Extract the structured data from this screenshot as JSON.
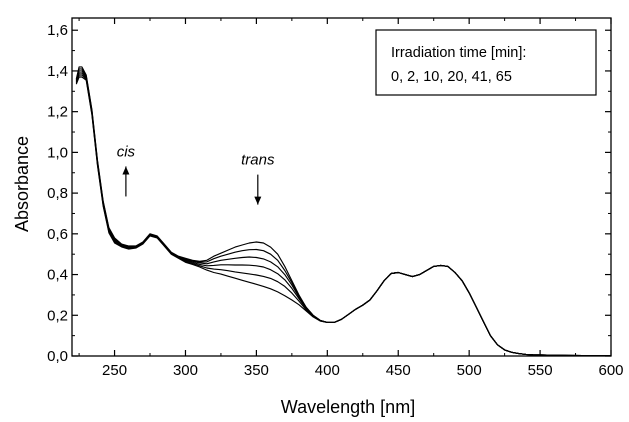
{
  "chart_data": {
    "type": "line",
    "title": "",
    "xlabel": "Wavelength [nm]",
    "ylabel": "Absorbance",
    "xlim": [
      220,
      600
    ],
    "ylim": [
      0.0,
      1.66
    ],
    "x_ticks": [
      250,
      300,
      350,
      400,
      450,
      500,
      550,
      600
    ],
    "x_tick_labels": [
      "250",
      "300",
      "350",
      "400",
      "450",
      "500",
      "550",
      "600"
    ],
    "y_ticks": [
      0.0,
      0.2,
      0.4,
      0.6,
      0.8,
      1.0,
      1.2,
      1.4,
      1.6
    ],
    "y_tick_labels": [
      "0,0",
      "0,2",
      "0,4",
      "0,6",
      "0,8",
      "1,0",
      "1,2",
      "1,4",
      "1,6"
    ],
    "grid": false,
    "legend": {
      "title": "Irradiation time [min]:",
      "entries": "0, 2, 10, 20, 41, 65",
      "position": "top-right"
    },
    "annotations": [
      {
        "text": "cis",
        "x": 258,
        "y": 0.98,
        "arrow": "up"
      },
      {
        "text": "trans",
        "x": 351,
        "y": 0.94,
        "arrow": "down"
      }
    ],
    "x": [
      223,
      225,
      227,
      230,
      234,
      238,
      242,
      246,
      250,
      255,
      260,
      265,
      270,
      275,
      280,
      285,
      290,
      295,
      300,
      305,
      310,
      315,
      320,
      325,
      330,
      335,
      340,
      345,
      350,
      355,
      360,
      365,
      370,
      375,
      380,
      385,
      390,
      395,
      400,
      405,
      410,
      415,
      420,
      425,
      430,
      435,
      440,
      445,
      450,
      455,
      460,
      465,
      470,
      475,
      480,
      485,
      490,
      495,
      500,
      505,
      510,
      515,
      520,
      525,
      530,
      535,
      540,
      545,
      550,
      560,
      570,
      580,
      590,
      600
    ],
    "series": [
      {
        "values": [
          1.36,
          1.42,
          1.42,
          1.38,
          1.21,
          0.96,
          0.76,
          0.63,
          0.58,
          0.55,
          0.54,
          0.54,
          0.56,
          0.6,
          0.59,
          0.55,
          0.51,
          0.49,
          0.48,
          0.47,
          0.465,
          0.47,
          0.49,
          0.505,
          0.52,
          0.535,
          0.545,
          0.555,
          0.56,
          0.555,
          0.535,
          0.5,
          0.44,
          0.37,
          0.3,
          0.24,
          0.2,
          0.175,
          0.165,
          0.165,
          0.18,
          0.205,
          0.23,
          0.25,
          0.275,
          0.32,
          0.37,
          0.405,
          0.41,
          0.4,
          0.39,
          0.4,
          0.42,
          0.44,
          0.445,
          0.44,
          0.41,
          0.37,
          0.31,
          0.24,
          0.17,
          0.1,
          0.055,
          0.03,
          0.018,
          0.012,
          0.008,
          0.006,
          0.005,
          0.004,
          0.003,
          0.002,
          0.002,
          0.001
        ]
      },
      {
        "values": [
          1.355,
          1.41,
          1.41,
          1.375,
          1.205,
          0.955,
          0.755,
          0.625,
          0.575,
          0.548,
          0.537,
          0.538,
          0.558,
          0.598,
          0.588,
          0.548,
          0.508,
          0.488,
          0.476,
          0.468,
          0.462,
          0.462,
          0.478,
          0.49,
          0.5,
          0.51,
          0.517,
          0.522,
          0.523,
          0.517,
          0.5,
          0.47,
          0.42,
          0.36,
          0.295,
          0.24,
          0.2,
          0.175,
          0.165,
          0.165,
          0.18,
          0.205,
          0.23,
          0.25,
          0.275,
          0.32,
          0.37,
          0.405,
          0.41,
          0.4,
          0.39,
          0.4,
          0.42,
          0.44,
          0.445,
          0.44,
          0.41,
          0.37,
          0.31,
          0.24,
          0.17,
          0.1,
          0.055,
          0.03,
          0.018,
          0.012,
          0.008,
          0.006,
          0.005,
          0.004,
          0.003,
          0.002,
          0.002,
          0.001
        ]
      },
      {
        "values": [
          1.35,
          1.4,
          1.4,
          1.37,
          1.2,
          0.95,
          0.75,
          0.62,
          0.57,
          0.545,
          0.534,
          0.536,
          0.556,
          0.596,
          0.586,
          0.546,
          0.506,
          0.486,
          0.472,
          0.465,
          0.457,
          0.453,
          0.462,
          0.47,
          0.475,
          0.48,
          0.484,
          0.486,
          0.484,
          0.477,
          0.462,
          0.438,
          0.4,
          0.348,
          0.29,
          0.238,
          0.2,
          0.175,
          0.165,
          0.165,
          0.18,
          0.205,
          0.23,
          0.25,
          0.275,
          0.32,
          0.37,
          0.405,
          0.41,
          0.4,
          0.39,
          0.4,
          0.42,
          0.44,
          0.445,
          0.44,
          0.41,
          0.37,
          0.31,
          0.24,
          0.17,
          0.1,
          0.055,
          0.03,
          0.018,
          0.012,
          0.008,
          0.006,
          0.005,
          0.004,
          0.003,
          0.002,
          0.002,
          0.001
        ]
      },
      {
        "values": [
          1.345,
          1.39,
          1.39,
          1.365,
          1.195,
          0.945,
          0.745,
          0.615,
          0.565,
          0.542,
          0.531,
          0.534,
          0.554,
          0.594,
          0.584,
          0.544,
          0.504,
          0.484,
          0.468,
          0.46,
          0.45,
          0.443,
          0.445,
          0.448,
          0.448,
          0.447,
          0.447,
          0.446,
          0.443,
          0.437,
          0.424,
          0.404,
          0.374,
          0.332,
          0.282,
          0.234,
          0.198,
          0.174,
          0.165,
          0.165,
          0.18,
          0.205,
          0.23,
          0.25,
          0.275,
          0.32,
          0.37,
          0.405,
          0.41,
          0.4,
          0.39,
          0.4,
          0.42,
          0.44,
          0.445,
          0.44,
          0.41,
          0.37,
          0.31,
          0.24,
          0.17,
          0.1,
          0.055,
          0.03,
          0.018,
          0.012,
          0.008,
          0.006,
          0.005,
          0.004,
          0.003,
          0.002,
          0.002,
          0.001
        ]
      },
      {
        "values": [
          1.34,
          1.38,
          1.38,
          1.36,
          1.19,
          0.94,
          0.74,
          0.61,
          0.56,
          0.539,
          0.528,
          0.532,
          0.552,
          0.592,
          0.582,
          0.542,
          0.502,
          0.482,
          0.464,
          0.455,
          0.443,
          0.432,
          0.427,
          0.424,
          0.419,
          0.413,
          0.408,
          0.403,
          0.398,
          0.391,
          0.381,
          0.365,
          0.342,
          0.309,
          0.27,
          0.228,
          0.195,
          0.173,
          0.165,
          0.165,
          0.18,
          0.205,
          0.23,
          0.25,
          0.275,
          0.32,
          0.37,
          0.405,
          0.41,
          0.4,
          0.39,
          0.4,
          0.42,
          0.44,
          0.445,
          0.44,
          0.41,
          0.37,
          0.31,
          0.24,
          0.17,
          0.1,
          0.055,
          0.03,
          0.018,
          0.012,
          0.008,
          0.006,
          0.005,
          0.004,
          0.003,
          0.002,
          0.002,
          0.001
        ]
      },
      {
        "values": [
          1.335,
          1.37,
          1.37,
          1.355,
          1.185,
          0.935,
          0.735,
          0.605,
          0.555,
          0.536,
          0.525,
          0.53,
          0.55,
          0.59,
          0.58,
          0.54,
          0.5,
          0.48,
          0.46,
          0.45,
          0.437,
          0.422,
          0.41,
          0.402,
          0.392,
          0.382,
          0.372,
          0.362,
          0.352,
          0.342,
          0.33,
          0.315,
          0.296,
          0.275,
          0.252,
          0.222,
          0.192,
          0.172,
          0.165,
          0.165,
          0.18,
          0.205,
          0.23,
          0.25,
          0.275,
          0.32,
          0.37,
          0.405,
          0.41,
          0.4,
          0.39,
          0.4,
          0.42,
          0.44,
          0.445,
          0.44,
          0.41,
          0.37,
          0.31,
          0.24,
          0.17,
          0.1,
          0.055,
          0.03,
          0.018,
          0.012,
          0.008,
          0.006,
          0.005,
          0.004,
          0.003,
          0.002,
          0.002,
          0.001
        ]
      }
    ]
  }
}
